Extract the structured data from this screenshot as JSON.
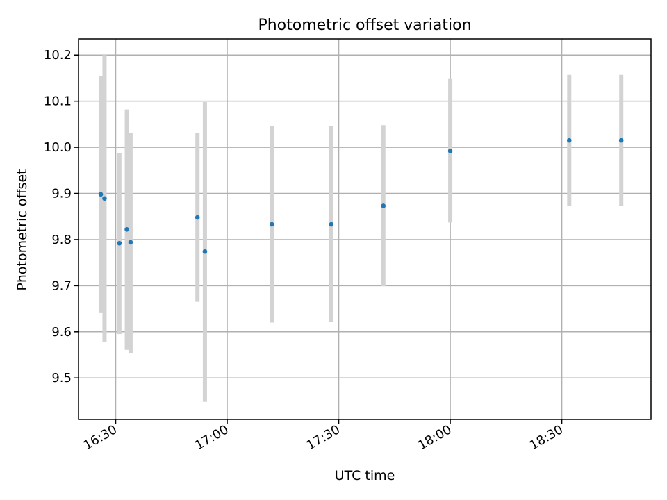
{
  "chart_data": {
    "type": "scatter",
    "title": "Photometric offset variation",
    "xlabel": "UTC time",
    "ylabel": "Photometric offset",
    "x_ticks": [
      "16:30",
      "17:00",
      "17:30",
      "18:00",
      "18:30"
    ],
    "y_ticks": [
      9.5,
      9.6,
      9.7,
      9.8,
      9.9,
      10.0,
      10.1,
      10.2
    ],
    "xlim": [
      "16:20",
      "18:54"
    ],
    "ylim": [
      9.41,
      10.235
    ],
    "grid": true,
    "series": [
      {
        "points": [
          {
            "x": "16:26",
            "y": 9.898,
            "ylow": 9.642,
            "yhigh": 10.155
          },
          {
            "x": "16:27",
            "y": 9.889,
            "ylow": 9.578,
            "yhigh": 10.2
          },
          {
            "x": "16:31",
            "y": 9.792,
            "ylow": 9.595,
            "yhigh": 9.988
          },
          {
            "x": "16:33",
            "y": 9.822,
            "ylow": 9.561,
            "yhigh": 10.082
          },
          {
            "x": "16:34",
            "y": 9.794,
            "ylow": 9.553,
            "yhigh": 10.031
          },
          {
            "x": "16:52",
            "y": 9.848,
            "ylow": 9.665,
            "yhigh": 10.031
          },
          {
            "x": "16:54",
            "y": 9.774,
            "ylow": 9.448,
            "yhigh": 10.098
          },
          {
            "x": "17:12",
            "y": 9.833,
            "ylow": 9.62,
            "yhigh": 10.046
          },
          {
            "x": "17:28",
            "y": 9.833,
            "ylow": 9.622,
            "yhigh": 10.046
          },
          {
            "x": "17:42",
            "y": 9.873,
            "ylow": 9.699,
            "yhigh": 10.048
          },
          {
            "x": "18:00",
            "y": 9.992,
            "ylow": 9.837,
            "yhigh": 10.148
          },
          {
            "x": "18:32",
            "y": 10.015,
            "ylow": 9.873,
            "yhigh": 10.157
          },
          {
            "x": "18:46",
            "y": 10.015,
            "ylow": 9.873,
            "yhigh": 10.157
          }
        ]
      }
    ],
    "colors": {
      "marker": "#1f77b4",
      "error_bar": "#d3d3d3",
      "grid": "#b0b0b0",
      "axes": "#000000"
    }
  }
}
